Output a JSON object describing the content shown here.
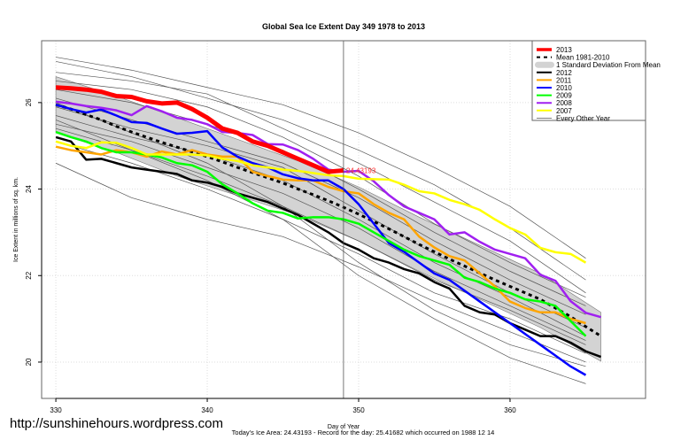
{
  "watermark": "http://sunshinehours.wordpress.com",
  "footer": "Today's Ice Area: 24.43193  - Record for the day: 25.41682 which occurred on 1988 12 14",
  "chart_data": {
    "type": "line",
    "title": "Global Sea Ice Extent Day 349 1978 to 2013",
    "xlabel": "Day of Year",
    "ylabel": "Ice Extent in millions of sq. km.",
    "xlim": [
      329.06,
      368.95
    ],
    "ylim": [
      19.16,
      27.43
    ],
    "xticks": [
      330,
      340,
      350,
      360
    ],
    "yticks": [
      20,
      22,
      24,
      26
    ],
    "grid": true,
    "legend_position": "top-right",
    "marker_day": 349,
    "marker_label": "24.43193",
    "band": {
      "name": "1 Standard Deviation From Mean",
      "color": "#d3d3d3",
      "x": [
        330,
        334,
        338,
        342,
        346,
        350,
        354,
        358,
        362,
        366
      ],
      "upper": [
        26.6,
        26.15,
        25.65,
        25.15,
        24.65,
        24.05,
        23.35,
        22.7,
        22.05,
        21.15
      ],
      "lower": [
        25.3,
        24.85,
        24.3,
        23.85,
        23.4,
        22.8,
        22.1,
        21.45,
        20.8,
        20.02
      ]
    },
    "other_years": {
      "name": "Every Other Year",
      "color": "#555555",
      "x": [
        330,
        335,
        340,
        345,
        350,
        355,
        360,
        365
      ],
      "lines": [
        [
          27.05,
          26.75,
          26.35,
          25.95,
          25.3,
          24.5,
          23.6,
          22.4
        ],
        [
          26.95,
          26.6,
          26.1,
          25.6,
          24.9,
          24.1,
          23.1,
          21.9
        ],
        [
          26.7,
          26.5,
          26.2,
          25.4,
          24.6,
          23.7,
          22.8,
          21.6
        ],
        [
          26.5,
          26.3,
          25.9,
          25.2,
          24.3,
          23.2,
          22.3,
          21.5
        ],
        [
          26.3,
          26.0,
          25.5,
          24.9,
          24.0,
          23.0,
          22.1,
          21.3
        ],
        [
          26.1,
          25.6,
          25.1,
          24.6,
          23.8,
          22.8,
          21.9,
          21.1
        ],
        [
          25.9,
          25.4,
          25.0,
          24.5,
          23.5,
          22.5,
          21.6,
          20.8
        ],
        [
          25.7,
          25.2,
          24.8,
          24.2,
          23.3,
          22.3,
          21.5,
          20.6
        ],
        [
          25.5,
          25.1,
          24.5,
          23.9,
          23.1,
          22.1,
          21.3,
          20.5
        ],
        [
          25.4,
          24.9,
          24.3,
          23.6,
          22.8,
          21.9,
          21.2,
          20.4
        ],
        [
          25.1,
          24.6,
          24.0,
          23.3,
          22.5,
          21.6,
          21.0,
          20.2
        ],
        [
          24.6,
          23.8,
          23.3,
          22.9,
          22.2,
          21.4,
          20.7,
          20.0
        ],
        [
          26.0,
          25.3,
          24.6,
          23.6,
          22.3,
          21.2,
          20.4,
          19.9
        ],
        [
          25.6,
          24.9,
          24.2,
          23.3,
          22.0,
          21.0,
          20.1,
          19.5
        ]
      ]
    },
    "series": [
      {
        "name": "Mean 1981-2010",
        "color": "#000000",
        "dashed": true,
        "start": 330,
        "values": [
          25.95,
          25.85,
          25.72,
          25.6,
          25.45,
          25.32,
          25.2,
          25.08,
          24.97,
          24.86,
          24.75,
          24.63,
          24.5,
          24.38,
          24.26,
          24.14,
          24.0,
          23.87,
          23.73,
          23.58,
          23.42,
          23.25,
          23.08,
          22.9,
          22.72,
          22.55,
          22.38,
          22.22,
          22.06,
          21.9,
          21.75,
          21.6,
          21.45,
          21.25,
          21.05,
          20.82,
          20.6
        ]
      },
      {
        "name": "2012",
        "color": "#000000",
        "start": 330,
        "values": [
          25.2,
          25.1,
          24.68,
          24.7,
          24.6,
          24.5,
          24.45,
          24.4,
          24.35,
          24.2,
          24.15,
          24.05,
          23.9,
          23.8,
          23.7,
          23.55,
          23.4,
          23.2,
          23.0,
          22.75,
          22.6,
          22.4,
          22.3,
          22.15,
          22.05,
          21.85,
          21.7,
          21.3,
          21.15,
          21.1,
          20.9,
          20.75,
          20.6,
          20.6,
          20.45,
          20.25,
          20.12
        ]
      },
      {
        "name": "2011",
        "color": "#ffa500",
        "start": 330,
        "values": [
          24.98,
          24.9,
          24.85,
          24.8,
          24.9,
          24.85,
          24.75,
          24.87,
          24.8,
          24.9,
          24.8,
          24.75,
          24.75,
          24.4,
          24.3,
          24.22,
          24.2,
          24.2,
          24.05,
          23.95,
          23.9,
          23.65,
          23.45,
          23.3,
          22.9,
          22.65,
          22.45,
          22.35,
          22.05,
          21.75,
          21.4,
          21.25,
          21.15,
          21.15,
          21.0,
          20.9
        ]
      },
      {
        "name": "2010",
        "color": "#0000ff",
        "start": 330,
        "values": [
          25.95,
          25.85,
          25.77,
          25.84,
          25.7,
          25.55,
          25.53,
          25.4,
          25.28,
          25.3,
          25.34,
          24.96,
          24.75,
          24.6,
          24.5,
          24.34,
          24.25,
          24.2,
          24.2,
          24.0,
          23.65,
          23.2,
          22.75,
          22.55,
          22.3,
          22.05,
          21.9,
          21.65,
          21.4,
          21.15,
          20.9,
          20.65,
          20.4,
          20.15,
          19.9,
          19.7
        ]
      },
      {
        "name": "2009",
        "color": "#00ff00",
        "start": 330,
        "values": [
          25.32,
          25.2,
          25.1,
          24.95,
          24.85,
          24.85,
          24.8,
          24.73,
          24.6,
          24.55,
          24.4,
          24.11,
          23.9,
          23.67,
          23.5,
          23.45,
          23.32,
          23.35,
          23.35,
          23.3,
          23.2,
          23.0,
          22.8,
          22.6,
          22.45,
          22.35,
          22.25,
          21.95,
          21.85,
          21.7,
          21.6,
          21.45,
          21.4,
          21.3,
          20.95,
          20.6
        ]
      },
      {
        "name": "2008",
        "color": "#a020f0",
        "start": 330,
        "values": [
          26.02,
          25.98,
          25.92,
          25.88,
          25.82,
          25.71,
          25.92,
          25.8,
          25.65,
          25.6,
          25.5,
          25.32,
          25.3,
          25.25,
          25.04,
          25.03,
          24.9,
          24.7,
          24.45,
          24.4,
          24.42,
          24.18,
          23.86,
          23.6,
          23.45,
          23.3,
          22.95,
          23.0,
          22.78,
          22.6,
          22.5,
          22.4,
          22.02,
          21.88,
          21.41,
          21.14,
          21.04
        ]
      },
      {
        "name": "2007",
        "color": "#ffff00",
        "start": 330,
        "values": [
          25.1,
          25.0,
          24.95,
          25.08,
          25.07,
          24.95,
          24.8,
          24.8,
          24.8,
          24.8,
          24.78,
          24.7,
          24.65,
          24.55,
          24.5,
          24.45,
          24.42,
          24.37,
          24.32,
          24.3,
          24.24,
          24.23,
          24.22,
          24.1,
          23.95,
          23.9,
          23.75,
          23.65,
          23.52,
          23.3,
          23.1,
          22.95,
          22.64,
          22.54,
          22.5,
          22.3
        ]
      },
      {
        "name": "2013",
        "color": "#ff0000",
        "start": 330,
        "thick": true,
        "values": [
          26.35,
          26.33,
          26.3,
          26.25,
          26.15,
          26.13,
          26.03,
          25.98,
          26.0,
          25.85,
          25.65,
          25.4,
          25.3,
          25.1,
          25.0,
          24.85,
          24.7,
          24.55,
          24.4,
          24.43193
        ]
      }
    ],
    "legend": [
      {
        "label": "2013",
        "color": "#ff0000",
        "kind": "thick"
      },
      {
        "label": "Mean 1981-2010",
        "color": "#000000",
        "kind": "dash"
      },
      {
        "label": "1 Standard Deviation From Mean",
        "color": "#d3d3d3",
        "kind": "box"
      },
      {
        "label": "2012",
        "color": "#000000",
        "kind": "line"
      },
      {
        "label": "2011",
        "color": "#ffa500",
        "kind": "line"
      },
      {
        "label": "2010",
        "color": "#0000ff",
        "kind": "line"
      },
      {
        "label": "2009",
        "color": "#00ff00",
        "kind": "line"
      },
      {
        "label": "2008",
        "color": "#a020f0",
        "kind": "line"
      },
      {
        "label": "2007",
        "color": "#ffff00",
        "kind": "line"
      },
      {
        "label": "Every Other Year",
        "color": "#555555",
        "kind": "thin"
      }
    ]
  }
}
